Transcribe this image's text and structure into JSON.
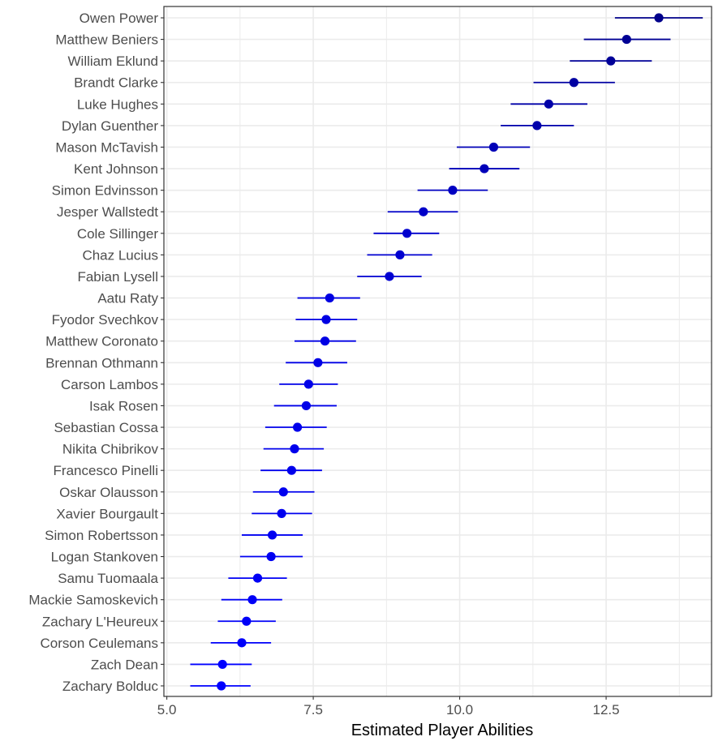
{
  "chart_data": {
    "type": "scatter",
    "subtype": "dot-and-whisker",
    "xlabel": "Estimated Player Abilities",
    "ylabel": "",
    "xlim": [
      4.95,
      14.3
    ],
    "x_ticks": [
      5.0,
      7.5,
      10.0,
      12.5
    ],
    "x_tick_labels": [
      "5.0",
      "7.5",
      "10.0",
      "12.5"
    ],
    "grid": true,
    "legend": "none",
    "colors": {
      "low": "#0000ff",
      "high": "#00008b",
      "grid": "#ebebeb",
      "panel_border": "#333333"
    },
    "players": [
      {
        "name": "Owen Power",
        "estimate": 13.4,
        "lower": 12.65,
        "upper": 14.15
      },
      {
        "name": "Matthew Beniers",
        "estimate": 12.85,
        "lower": 12.12,
        "upper": 13.6
      },
      {
        "name": "William Eklund",
        "estimate": 12.58,
        "lower": 11.88,
        "upper": 13.28
      },
      {
        "name": "Brandt Clarke",
        "estimate": 11.95,
        "lower": 11.26,
        "upper": 12.65
      },
      {
        "name": "Luke Hughes",
        "estimate": 11.52,
        "lower": 10.87,
        "upper": 12.18
      },
      {
        "name": "Dylan Guenther",
        "estimate": 11.32,
        "lower": 10.7,
        "upper": 11.95
      },
      {
        "name": "Mason McTavish",
        "estimate": 10.58,
        "lower": 9.95,
        "upper": 11.2
      },
      {
        "name": "Kent Johnson",
        "estimate": 10.42,
        "lower": 9.82,
        "upper": 11.02
      },
      {
        "name": "Simon Edvinsson",
        "estimate": 9.88,
        "lower": 9.28,
        "upper": 10.48
      },
      {
        "name": "Jesper Wallstedt",
        "estimate": 9.38,
        "lower": 8.77,
        "upper": 9.97
      },
      {
        "name": "Cole Sillinger",
        "estimate": 9.1,
        "lower": 8.53,
        "upper": 9.65
      },
      {
        "name": "Chaz Lucius",
        "estimate": 8.98,
        "lower": 8.42,
        "upper": 9.53
      },
      {
        "name": "Fabian Lysell",
        "estimate": 8.8,
        "lower": 8.25,
        "upper": 9.35
      },
      {
        "name": "Aatu Raty",
        "estimate": 7.78,
        "lower": 7.23,
        "upper": 8.3
      },
      {
        "name": "Fyodor Svechkov",
        "estimate": 7.72,
        "lower": 7.2,
        "upper": 8.25
      },
      {
        "name": "Matthew Coronato",
        "estimate": 7.7,
        "lower": 7.18,
        "upper": 8.23
      },
      {
        "name": "Brennan Othmann",
        "estimate": 7.58,
        "lower": 7.03,
        "upper": 8.08
      },
      {
        "name": "Carson Lambos",
        "estimate": 7.42,
        "lower": 6.92,
        "upper": 7.92
      },
      {
        "name": "Isak Rosen",
        "estimate": 7.38,
        "lower": 6.83,
        "upper": 7.9
      },
      {
        "name": "Sebastian Cossa",
        "estimate": 7.23,
        "lower": 6.68,
        "upper": 7.73
      },
      {
        "name": "Nikita Chibrikov",
        "estimate": 7.18,
        "lower": 6.65,
        "upper": 7.68
      },
      {
        "name": "Francesco Pinelli",
        "estimate": 7.13,
        "lower": 6.6,
        "upper": 7.65
      },
      {
        "name": "Oskar Olausson",
        "estimate": 6.99,
        "lower": 6.47,
        "upper": 7.52
      },
      {
        "name": "Xavier Bourgault",
        "estimate": 6.96,
        "lower": 6.45,
        "upper": 7.48
      },
      {
        "name": "Simon Robertsson",
        "estimate": 6.8,
        "lower": 6.28,
        "upper": 7.32
      },
      {
        "name": "Logan Stankoven",
        "estimate": 6.78,
        "lower": 6.25,
        "upper": 7.32
      },
      {
        "name": "Samu Tuomaala",
        "estimate": 6.55,
        "lower": 6.05,
        "upper": 7.05
      },
      {
        "name": "Mackie Samoskevich",
        "estimate": 6.46,
        "lower": 5.93,
        "upper": 6.97
      },
      {
        "name": "Zachary L'Heureux",
        "estimate": 6.36,
        "lower": 5.87,
        "upper": 6.86
      },
      {
        "name": "Corson Ceulemans",
        "estimate": 6.28,
        "lower": 5.75,
        "upper": 6.78
      },
      {
        "name": "Zach Dean",
        "estimate": 5.95,
        "lower": 5.4,
        "upper": 6.45
      },
      {
        "name": "Zachary Bolduc",
        "estimate": 5.93,
        "lower": 5.4,
        "upper": 6.43
      }
    ]
  }
}
